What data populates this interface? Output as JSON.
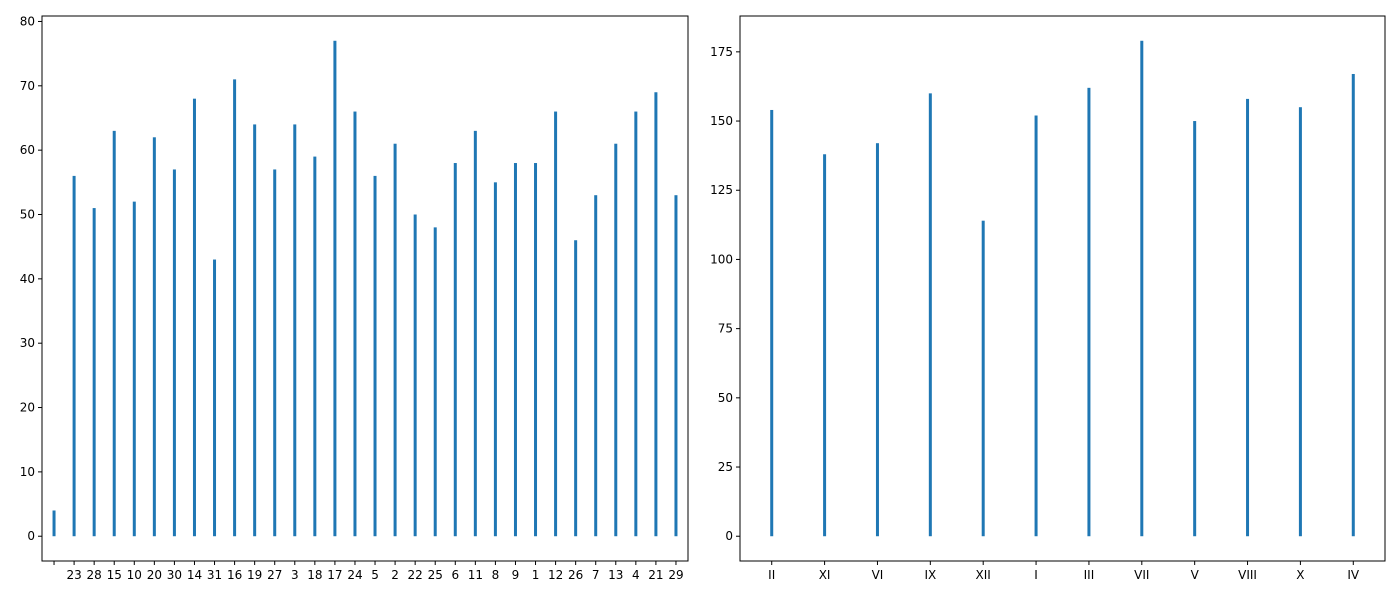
{
  "chart_data": [
    {
      "type": "bar",
      "categories": [
        "",
        "23",
        "28",
        "15",
        "10",
        "20",
        "30",
        "14",
        "31",
        "16",
        "19",
        "27",
        "3",
        "18",
        "17",
        "24",
        "5",
        "2",
        "22",
        "25",
        "6",
        "11",
        "8",
        "9",
        "1",
        "12",
        "26",
        "7",
        "13",
        "4",
        "21",
        "29"
      ],
      "values": [
        4,
        56,
        51,
        63,
        52,
        62,
        57,
        68,
        43,
        71,
        64,
        57,
        64,
        59,
        77,
        66,
        56,
        61,
        50,
        48,
        58,
        63,
        55,
        58,
        58,
        66,
        46,
        53,
        61,
        66,
        69,
        53
      ],
      "yticks": [
        0,
        10,
        20,
        30,
        40,
        50,
        60,
        70,
        80
      ],
      "ylim": [
        -3.85,
        80.85
      ],
      "title": "",
      "xlabel": "",
      "ylabel": "",
      "color": "#1f77b4",
      "grid": false
    },
    {
      "type": "bar",
      "categories": [
        "II",
        "XI",
        "VI",
        "IX",
        "XII",
        "I",
        "III",
        "VII",
        "V",
        "VIII",
        "X",
        "IV"
      ],
      "values": [
        154,
        138,
        142,
        160,
        114,
        152,
        162,
        179,
        150,
        158,
        155,
        167
      ],
      "yticks": [
        0,
        25,
        50,
        75,
        100,
        125,
        150,
        175
      ],
      "ylim": [
        -8.95,
        187.95
      ],
      "title": "",
      "xlabel": "",
      "ylabel": "",
      "color": "#1f77b4",
      "grid": false
    }
  ]
}
